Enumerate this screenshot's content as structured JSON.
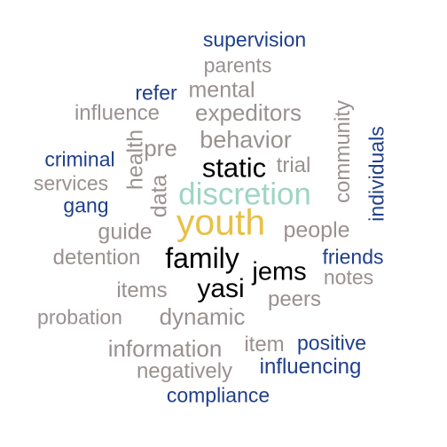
{
  "colors": {
    "gray": "#999190",
    "blue": "#1f3f8b",
    "black": "#000000",
    "teal": "#9fd5c2",
    "gold": "#e8c045"
  },
  "words": [
    {
      "text": "supervision",
      "color": "blue"
    },
    {
      "text": "parents",
      "color": "gray"
    },
    {
      "text": "refer",
      "color": "blue"
    },
    {
      "text": "mental",
      "color": "gray"
    },
    {
      "text": "influence",
      "color": "gray"
    },
    {
      "text": "expeditors",
      "color": "gray"
    },
    {
      "text": "community",
      "color": "gray"
    },
    {
      "text": "individuals",
      "color": "blue"
    },
    {
      "text": "health",
      "color": "gray"
    },
    {
      "text": "pre",
      "color": "gray"
    },
    {
      "text": "behavior",
      "color": "gray"
    },
    {
      "text": "criminal",
      "color": "blue"
    },
    {
      "text": "static",
      "color": "black"
    },
    {
      "text": "trial",
      "color": "gray"
    },
    {
      "text": "services",
      "color": "gray"
    },
    {
      "text": "data",
      "color": "gray"
    },
    {
      "text": "discretion",
      "color": "teal"
    },
    {
      "text": "gang",
      "color": "blue"
    },
    {
      "text": "youth",
      "color": "gold"
    },
    {
      "text": "guide",
      "color": "gray"
    },
    {
      "text": "people",
      "color": "gray"
    },
    {
      "text": "detention",
      "color": "gray"
    },
    {
      "text": "family",
      "color": "black"
    },
    {
      "text": "friends",
      "color": "blue"
    },
    {
      "text": "jems",
      "color": "black"
    },
    {
      "text": "notes",
      "color": "gray"
    },
    {
      "text": "items",
      "color": "gray"
    },
    {
      "text": "yasi",
      "color": "black"
    },
    {
      "text": "peers",
      "color": "gray"
    },
    {
      "text": "probation",
      "color": "gray"
    },
    {
      "text": "dynamic",
      "color": "gray"
    },
    {
      "text": "information",
      "color": "gray"
    },
    {
      "text": "item",
      "color": "gray"
    },
    {
      "text": "positive",
      "color": "blue"
    },
    {
      "text": "negatively",
      "color": "gray"
    },
    {
      "text": "influencing",
      "color": "blue"
    },
    {
      "text": "compliance",
      "color": "blue"
    }
  ]
}
